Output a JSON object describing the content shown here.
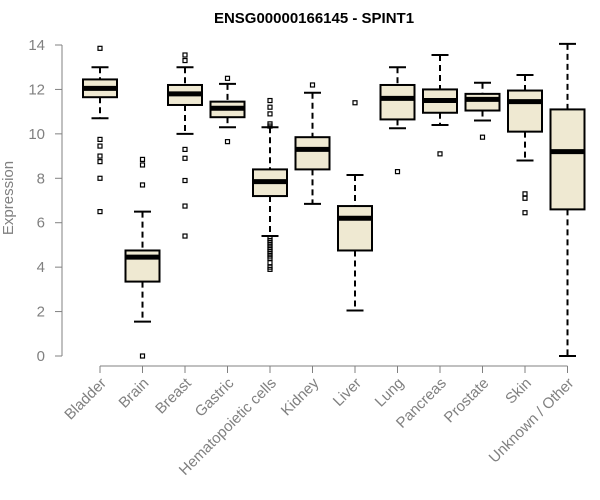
{
  "chart_data": {
    "type": "box",
    "title": "ENSG00000166145 - SPINT1",
    "xlabel": "",
    "ylabel": "Expression",
    "ylim": [
      0,
      14
    ],
    "yticks": [
      0,
      2,
      4,
      6,
      8,
      10,
      12,
      14
    ],
    "box_fill": "#efe9d2",
    "axis_color": "#808080",
    "categories": [
      "Bladder",
      "Brain",
      "Breast",
      "Gastric",
      "Hematopoietic cells",
      "Kidney",
      "Liver",
      "Lung",
      "Pancreas",
      "Prostate",
      "Skin",
      "Unknown / Other"
    ],
    "boxes": [
      {
        "whisker_low": 10.7,
        "q1": 11.65,
        "median": 12.05,
        "q3": 12.45,
        "whisker_high": 13.0,
        "outliers": [
          13.85,
          9.75,
          9.45,
          9.0,
          8.75,
          8.0,
          6.5
        ]
      },
      {
        "whisker_low": 1.55,
        "q1": 3.35,
        "median": 4.45,
        "q3": 4.75,
        "whisker_high": 6.5,
        "outliers": [
          8.85,
          8.6,
          7.7,
          0.0
        ]
      },
      {
        "whisker_low": 10.0,
        "q1": 11.3,
        "median": 11.8,
        "q3": 12.2,
        "whisker_high": 13.0,
        "outliers": [
          13.55,
          13.3,
          9.3,
          8.9,
          7.9,
          6.75,
          5.4
        ]
      },
      {
        "whisker_low": 10.3,
        "q1": 10.75,
        "median": 11.15,
        "q3": 11.45,
        "whisker_high": 12.25,
        "outliers": [
          12.5,
          9.65
        ]
      },
      {
        "whisker_low": 5.4,
        "q1": 7.2,
        "median": 7.85,
        "q3": 8.4,
        "whisker_high": 10.3,
        "outliers": [
          11.5,
          11.2,
          10.9,
          10.45,
          10.35,
          5.3,
          5.2,
          5.1,
          5.0,
          4.9,
          4.8,
          4.7,
          4.6,
          4.5,
          4.4,
          4.2,
          4.0,
          3.9
        ]
      },
      {
        "whisker_low": 6.85,
        "q1": 8.4,
        "median": 9.3,
        "q3": 9.85,
        "whisker_high": 11.85,
        "outliers": [
          12.2
        ]
      },
      {
        "whisker_low": 2.05,
        "q1": 4.75,
        "median": 6.2,
        "q3": 6.75,
        "whisker_high": 8.15,
        "outliers": [
          11.4
        ]
      },
      {
        "whisker_low": 10.25,
        "q1": 10.65,
        "median": 11.6,
        "q3": 12.2,
        "whisker_high": 13.0,
        "outliers": [
          8.3
        ]
      },
      {
        "whisker_low": 10.4,
        "q1": 10.95,
        "median": 11.5,
        "q3": 12.0,
        "whisker_high": 13.55,
        "outliers": [
          9.1
        ]
      },
      {
        "whisker_low": 10.6,
        "q1": 11.05,
        "median": 11.55,
        "q3": 11.8,
        "whisker_high": 12.3,
        "outliers": [
          9.85
        ]
      },
      {
        "whisker_low": 8.8,
        "q1": 10.1,
        "median": 11.45,
        "q3": 11.95,
        "whisker_high": 12.65,
        "outliers": [
          7.3,
          7.1,
          6.45
        ]
      },
      {
        "whisker_low": 0.0,
        "q1": 6.6,
        "median": 9.2,
        "q3": 11.1,
        "whisker_high": 14.05,
        "outliers": []
      }
    ]
  }
}
